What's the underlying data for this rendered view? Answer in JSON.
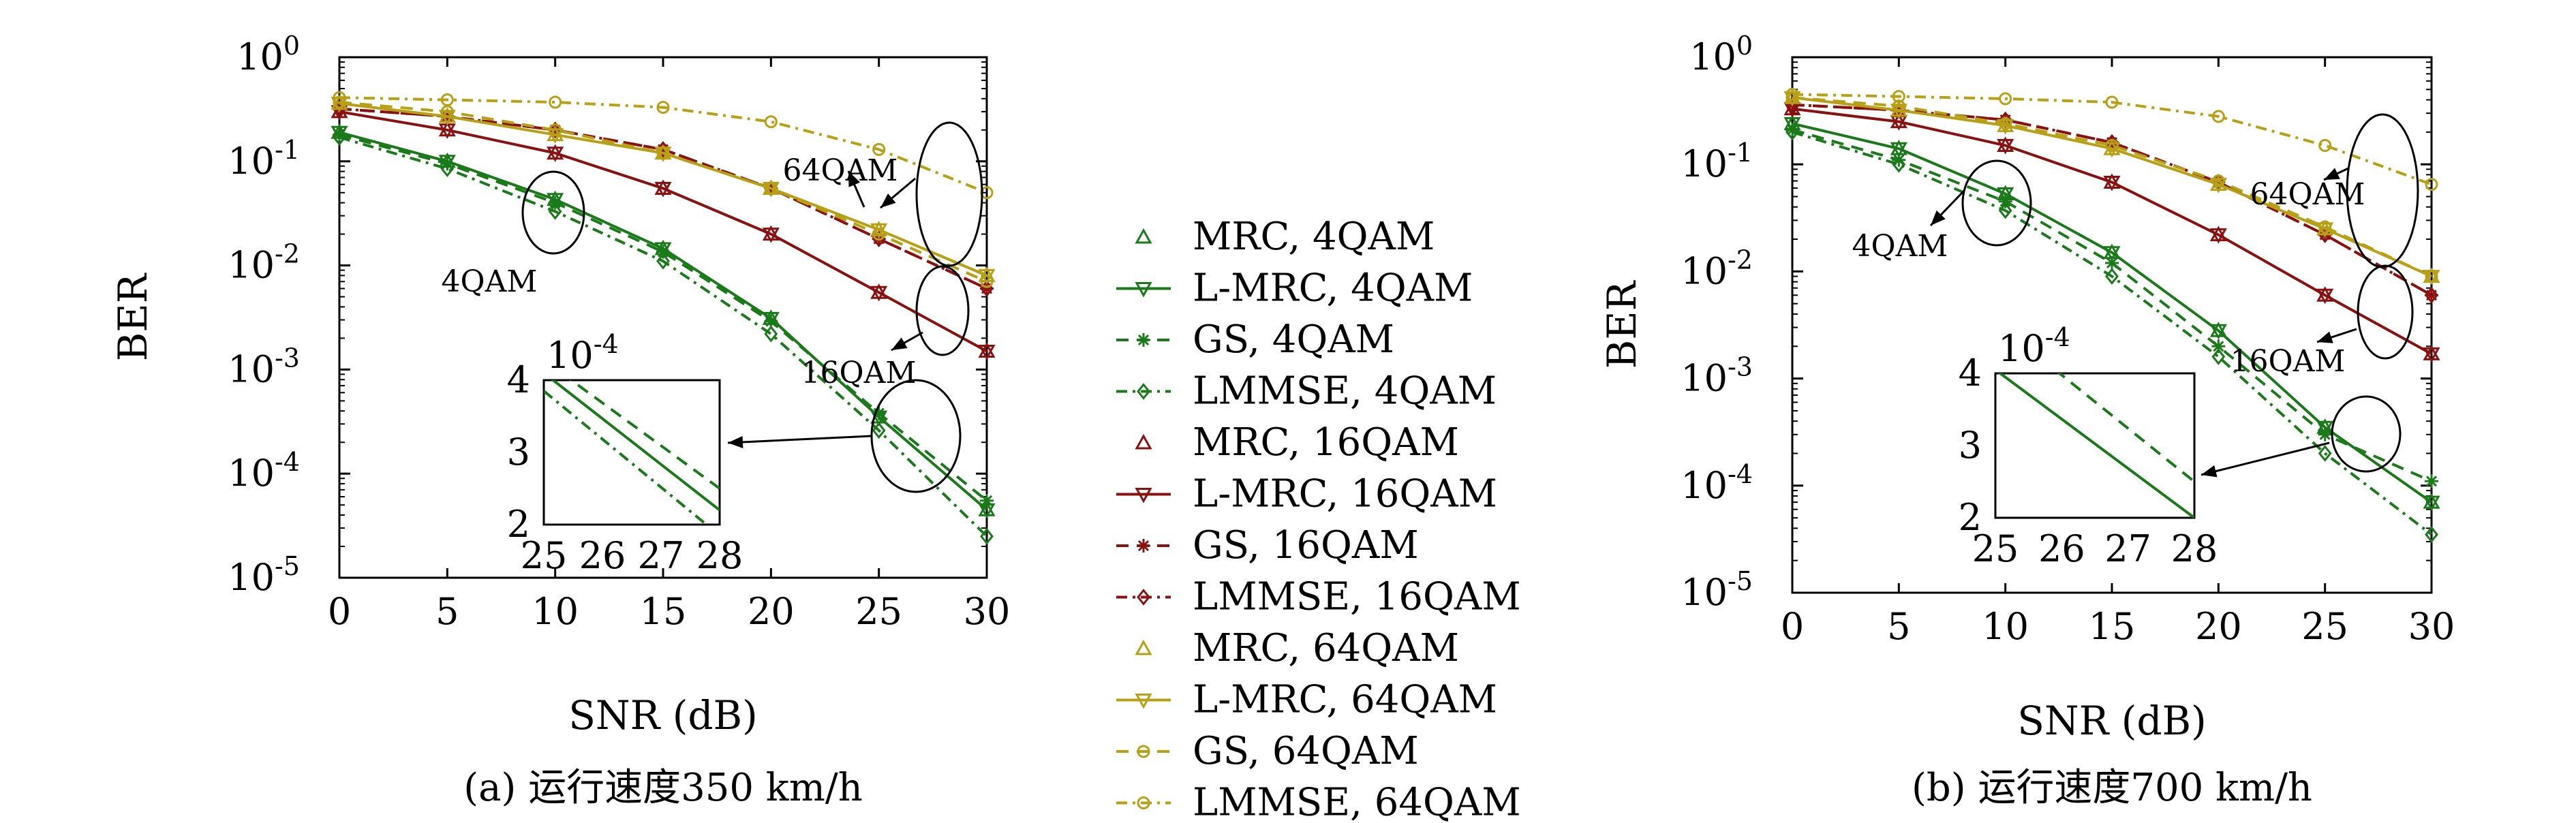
{
  "colors": {
    "4QAM": "#1a7a1a",
    "16QAM": "#8b1010",
    "64QAM": "#b8a015"
  },
  "legend": [
    {
      "label": "MRC, 4QAM",
      "mod": "4QAM",
      "dash": "none",
      "marker": "tri-up",
      "line": false
    },
    {
      "label": "L-MRC, 4QAM",
      "mod": "4QAM",
      "dash": "solid",
      "marker": "tri-down",
      "line": true
    },
    {
      "label": "GS, 4QAM",
      "mod": "4QAM",
      "dash": "dashed",
      "marker": "star",
      "line": true
    },
    {
      "label": "LMMSE, 4QAM",
      "mod": "4QAM",
      "dash": "dashdot",
      "marker": "diamond",
      "line": true
    },
    {
      "label": "MRC, 16QAM",
      "mod": "16QAM",
      "dash": "none",
      "marker": "tri-up",
      "line": false
    },
    {
      "label": "L-MRC, 16QAM",
      "mod": "16QAM",
      "dash": "solid",
      "marker": "tri-down",
      "line": true
    },
    {
      "label": "GS, 16QAM",
      "mod": "16QAM",
      "dash": "dashed",
      "marker": "star",
      "line": true
    },
    {
      "label": "LMMSE, 16QAM",
      "mod": "16QAM",
      "dash": "dashdot",
      "marker": "diamond",
      "line": true
    },
    {
      "label": "MRC, 64QAM",
      "mod": "64QAM",
      "dash": "none",
      "marker": "tri-up",
      "line": false
    },
    {
      "label": "L-MRC, 64QAM",
      "mod": "64QAM",
      "dash": "solid",
      "marker": "tri-down",
      "line": true
    },
    {
      "label": "GS, 64QAM",
      "mod": "64QAM",
      "dash": "dashed",
      "marker": "circle",
      "line": true
    },
    {
      "label": "LMMSE, 64QAM",
      "mod": "64QAM",
      "dash": "dashdot",
      "marker": "circle",
      "line": true
    }
  ],
  "chart_data": [
    {
      "type": "line",
      "caption": "(a) 运行速度350 km/h",
      "xlabel": "SNR (dB)",
      "ylabel": "BER",
      "yscale": "log",
      "xlim": [
        0,
        30
      ],
      "ylim": [
        1e-05,
        1
      ],
      "xticks": [
        "0",
        "5",
        "10",
        "15",
        "20",
        "25",
        "30"
      ],
      "yticks": [
        {
          "base": "10",
          "exp": "0"
        },
        {
          "base": "10",
          "exp": "-1"
        },
        {
          "base": "10",
          "exp": "-2"
        },
        {
          "base": "10",
          "exp": "-3"
        },
        {
          "base": "10",
          "exp": "-4"
        },
        {
          "base": "10",
          "exp": "-5"
        }
      ],
      "x": [
        0,
        5,
        10,
        15,
        20,
        25,
        30
      ],
      "series": [
        {
          "legend": 0,
          "values": [
            0.19,
            0.1,
            0.043,
            0.0145,
            0.0031,
            0.00035,
            4.5e-05
          ]
        },
        {
          "legend": 1,
          "values": [
            0.19,
            0.1,
            0.043,
            0.0145,
            0.0031,
            0.00035,
            4.5e-05
          ]
        },
        {
          "legend": 2,
          "values": [
            0.18,
            0.095,
            0.04,
            0.0135,
            0.0029,
            0.00038,
            5.5e-05
          ]
        },
        {
          "legend": 3,
          "values": [
            0.17,
            0.085,
            0.033,
            0.011,
            0.0022,
            0.00026,
            2.5e-05
          ]
        },
        {
          "legend": 4,
          "values": [
            0.3,
            0.2,
            0.12,
            0.055,
            0.02,
            0.0055,
            0.0015
          ]
        },
        {
          "legend": 5,
          "values": [
            0.3,
            0.2,
            0.12,
            0.055,
            0.02,
            0.0055,
            0.0015
          ]
        },
        {
          "legend": 6,
          "values": [
            0.32,
            0.27,
            0.2,
            0.13,
            0.055,
            0.018,
            0.006
          ]
        },
        {
          "legend": 7,
          "values": [
            0.32,
            0.27,
            0.2,
            0.13,
            0.055,
            0.018,
            0.006
          ]
        },
        {
          "legend": 8,
          "values": [
            0.36,
            0.27,
            0.18,
            0.12,
            0.055,
            0.022,
            0.008
          ]
        },
        {
          "legend": 9,
          "values": [
            0.36,
            0.27,
            0.18,
            0.12,
            0.055,
            0.022,
            0.008
          ]
        },
        {
          "legend": 10,
          "values": [
            0.37,
            0.3,
            0.2,
            0.12,
            0.055,
            0.02,
            0.007
          ]
        },
        {
          "legend": 11,
          "values": [
            0.41,
            0.39,
            0.37,
            0.33,
            0.24,
            0.13,
            0.05
          ]
        }
      ],
      "annotations": [
        "64QAM",
        "4QAM",
        "16QAM"
      ],
      "inset": {
        "xticks": [
          "25",
          "26",
          "27",
          "28"
        ],
        "yticks": [
          "4",
          "3",
          "2"
        ],
        "scale_base": "10",
        "scale_exp": "-4",
        "xlim": [
          25,
          28
        ],
        "ylim": [
          2,
          4
        ],
        "series": [
          {
            "legend": 1,
            "x": [
              25,
              28
            ],
            "y": [
              4.1,
              2.2
            ]
          },
          {
            "legend": 2,
            "x": [
              25.3,
              28
            ],
            "y": [
              4.1,
              2.5
            ]
          },
          {
            "legend": 3,
            "x": [
              25,
              28
            ],
            "y": [
              3.85,
              1.85
            ]
          }
        ]
      }
    },
    {
      "type": "line",
      "caption": "(b) 运行速度700 km/h",
      "xlabel": "SNR (dB)",
      "ylabel": "BER",
      "yscale": "log",
      "xlim": [
        0,
        30
      ],
      "ylim": [
        1e-05,
        1
      ],
      "xticks": [
        "0",
        "5",
        "10",
        "15",
        "20",
        "25",
        "30"
      ],
      "yticks": [
        {
          "base": "10",
          "exp": "0"
        },
        {
          "base": "10",
          "exp": "-1"
        },
        {
          "base": "10",
          "exp": "-2"
        },
        {
          "base": "10",
          "exp": "-3"
        },
        {
          "base": "10",
          "exp": "-4"
        },
        {
          "base": "10",
          "exp": "-5"
        }
      ],
      "x": [
        0,
        5,
        10,
        15,
        20,
        25,
        30
      ],
      "series": [
        {
          "legend": 0,
          "values": [
            0.24,
            0.14,
            0.053,
            0.015,
            0.0028,
            0.00035,
            7e-05
          ]
        },
        {
          "legend": 1,
          "values": [
            0.24,
            0.14,
            0.053,
            0.015,
            0.0028,
            0.00035,
            7e-05
          ]
        },
        {
          "legend": 2,
          "values": [
            0.21,
            0.11,
            0.045,
            0.012,
            0.002,
            0.0003,
            0.00011
          ]
        },
        {
          "legend": 3,
          "values": [
            0.2,
            0.1,
            0.037,
            0.009,
            0.0016,
            0.0002,
            3.5e-05
          ]
        },
        {
          "legend": 4,
          "values": [
            0.33,
            0.25,
            0.15,
            0.068,
            0.022,
            0.006,
            0.0017
          ]
        },
        {
          "legend": 5,
          "values": [
            0.33,
            0.25,
            0.15,
            0.068,
            0.022,
            0.006,
            0.0017
          ]
        },
        {
          "legend": 6,
          "values": [
            0.36,
            0.32,
            0.26,
            0.16,
            0.068,
            0.022,
            0.006
          ]
        },
        {
          "legend": 7,
          "values": [
            0.36,
            0.32,
            0.26,
            0.16,
            0.068,
            0.022,
            0.006
          ]
        },
        {
          "legend": 8,
          "values": [
            0.42,
            0.32,
            0.23,
            0.14,
            0.065,
            0.025,
            0.009
          ]
        },
        {
          "legend": 9,
          "values": [
            0.42,
            0.32,
            0.23,
            0.14,
            0.065,
            0.025,
            0.009
          ]
        },
        {
          "legend": 10,
          "values": [
            0.42,
            0.35,
            0.24,
            0.15,
            0.07,
            0.026,
            0.009
          ]
        },
        {
          "legend": 11,
          "values": [
            0.45,
            0.43,
            0.41,
            0.38,
            0.28,
            0.15,
            0.065
          ]
        }
      ],
      "annotations": [
        "64QAM",
        "4QAM",
        "16QAM"
      ],
      "inset": {
        "xticks": [
          "25",
          "26",
          "27",
          "28"
        ],
        "yticks": [
          "4",
          "3",
          "2"
        ],
        "scale_base": "10",
        "scale_exp": "-4",
        "xlim": [
          25,
          28
        ],
        "ylim": [
          2,
          4
        ],
        "series": [
          {
            "legend": 1,
            "x": [
              25,
              28
            ],
            "y": [
              4.05,
              2.0
            ]
          },
          {
            "legend": 2,
            "x": [
              25.9,
              28
            ],
            "y": [
              4.05,
              2.5
            ]
          }
        ]
      }
    }
  ]
}
